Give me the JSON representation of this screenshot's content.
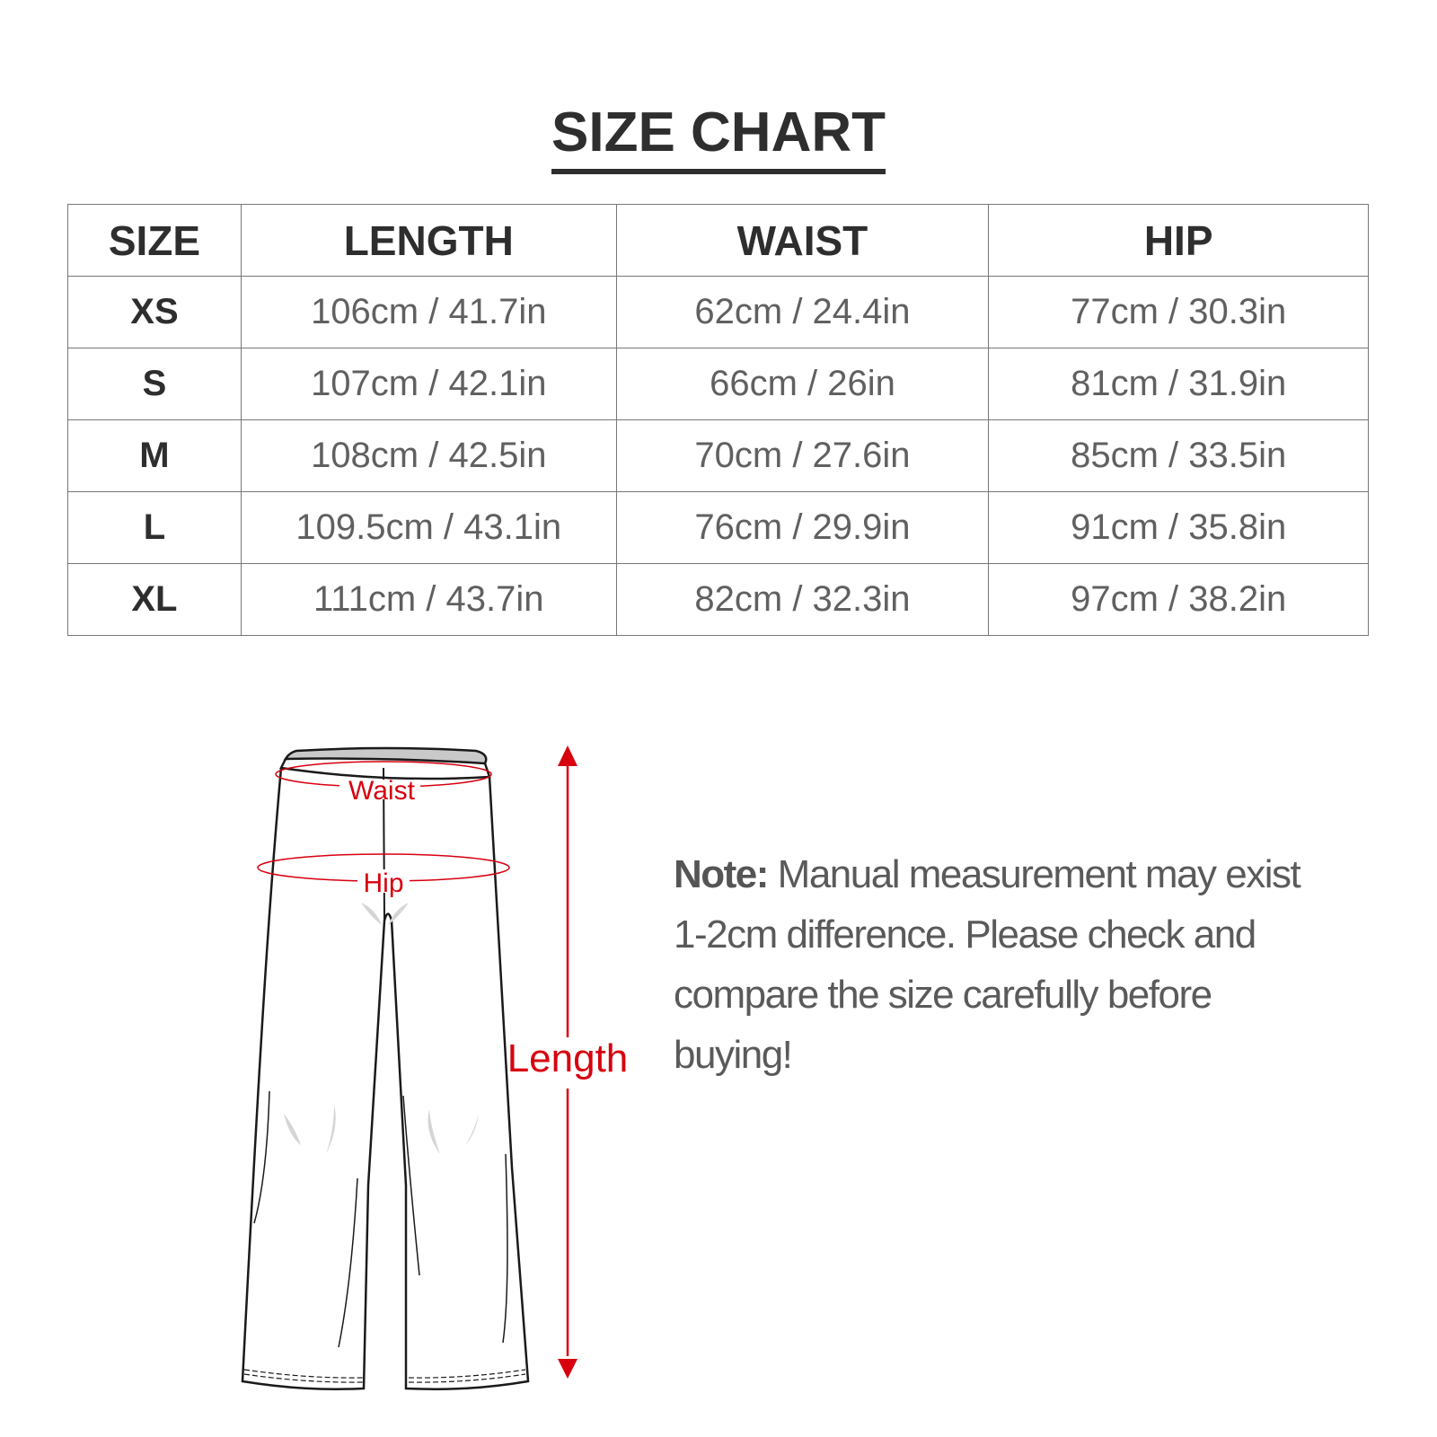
{
  "title": "SIZE CHART",
  "table": {
    "headers": [
      "SIZE",
      "LENGTH",
      "WAIST",
      "HIP"
    ],
    "rows": [
      {
        "size": "XS",
        "length": "106cm / 41.7in",
        "waist": "62cm / 24.4in",
        "hip": "77cm / 30.3in"
      },
      {
        "size": "S",
        "length": "107cm / 42.1in",
        "waist": "66cm / 26in",
        "hip": "81cm / 31.9in"
      },
      {
        "size": "M",
        "length": "108cm / 42.5in",
        "waist": "70cm / 27.6in",
        "hip": "85cm / 33.5in"
      },
      {
        "size": "L",
        "length": "109.5cm / 43.1in",
        "waist": "76cm / 29.9in",
        "hip": "91cm / 35.8in"
      },
      {
        "size": "XL",
        "length": "111cm / 43.7in",
        "waist": "82cm / 32.3in",
        "hip": "97cm / 38.2in"
      }
    ]
  },
  "diagram": {
    "waist_label": "Waist",
    "hip_label": "Hip",
    "length_label": "Length",
    "accent_color": "#d7000f"
  },
  "note": {
    "prefix": "Note:",
    "text": " Manual measurement may exist 1-2cm difference. Please check and compare the size carefully before buying!"
  }
}
